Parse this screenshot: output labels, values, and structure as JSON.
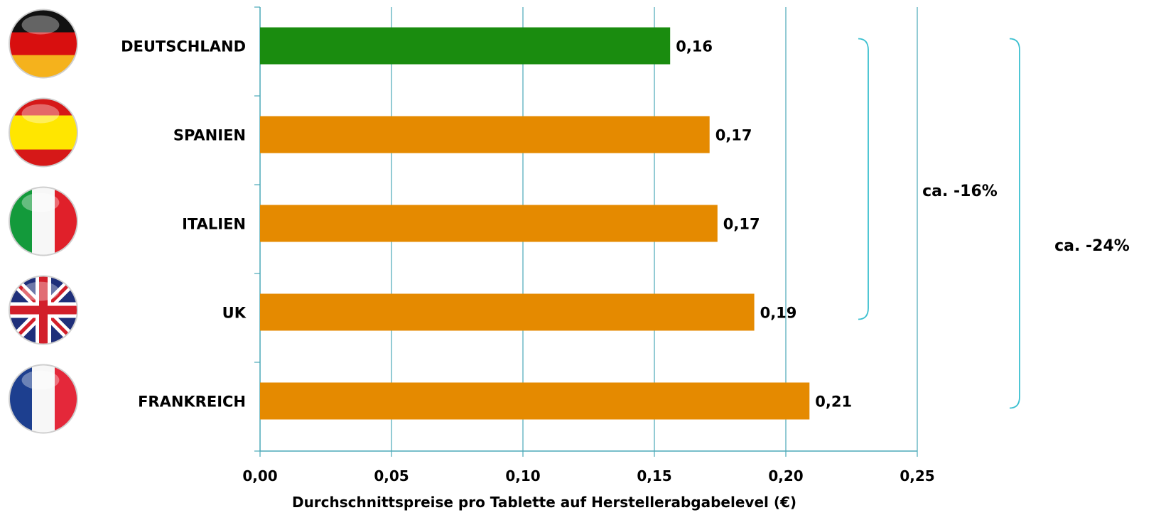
{
  "chart_data": {
    "type": "bar",
    "orientation": "horizontal",
    "categories": [
      "DEUTSCHLAND",
      "SPANIEN",
      "ITALIEN",
      "UK",
      "FRANKREICH"
    ],
    "values": [
      0.156,
      0.171,
      0.174,
      0.188,
      0.209
    ],
    "value_labels": [
      "0,16",
      "0,17",
      "0,17",
      "0,19",
      "0,21"
    ],
    "bar_colors": [
      "#1a8c0f",
      "#e58a00",
      "#e58a00",
      "#e58a00",
      "#e58a00"
    ],
    "flags": [
      "germany-flag",
      "spain-flag",
      "italy-flag",
      "uk-flag",
      "france-flag"
    ],
    "xlabel": "Durchschnittspreise pro Tablette auf Herstellerabgabelevel (€)",
    "xlim": [
      0,
      0.25
    ],
    "xticks": [
      0,
      0.05,
      0.1,
      0.15,
      0.2,
      0.25
    ],
    "xtick_labels": [
      "0,00",
      "0,05",
      "0,10",
      "0,15",
      "0,20",
      "0,25"
    ],
    "grid": "vertical",
    "grid_color": "#4aa8b8",
    "annotations": [
      {
        "text": "ca. -16%",
        "from": "DEUTSCHLAND",
        "to": "UK",
        "color": "#3cc0d0"
      },
      {
        "text": "ca. -24%",
        "from": "DEUTSCHLAND",
        "to": "FRANKREICH",
        "color": "#3cc0d0"
      }
    ]
  }
}
